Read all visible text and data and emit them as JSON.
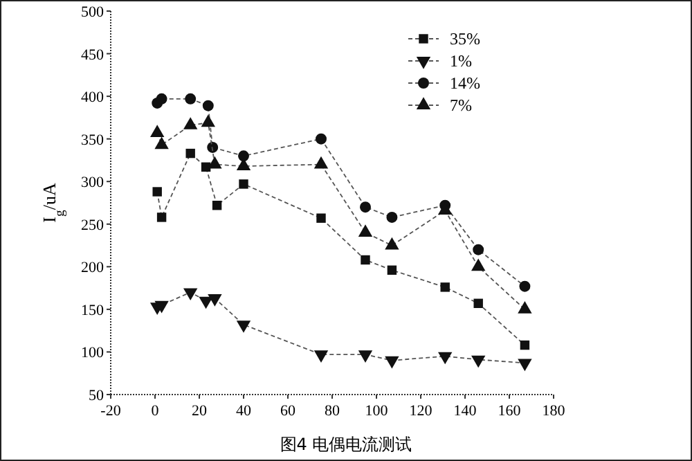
{
  "chart_data": {
    "type": "line",
    "ylabel": "I$_{g}$/uA",
    "annotations": [
      "图4   电偶电流测试"
    ],
    "xlim": [
      -20,
      180
    ],
    "xticks": [
      -20,
      0,
      20,
      40,
      60,
      80,
      100,
      120,
      140,
      160,
      180
    ],
    "ylim": [
      50,
      500
    ],
    "yticks": [
      50,
      100,
      150,
      200,
      250,
      300,
      350,
      400,
      450,
      500
    ],
    "legend": "top right",
    "grid": false,
    "line_style": "dashed",
    "series": [
      {
        "name": "35%",
        "color": "#111111",
        "marker": "square",
        "x": [
          1,
          3,
          16,
          23,
          28,
          40,
          75,
          95,
          107,
          131,
          146,
          167
        ],
        "values": [
          288,
          258,
          333,
          317,
          272,
          297,
          257,
          208,
          196,
          176,
          157,
          108
        ]
      },
      {
        "name": "1%",
        "color": "#111111",
        "marker": "triangle-down",
        "x": [
          1,
          3,
          16,
          23,
          27,
          40,
          75,
          95,
          107,
          131,
          146,
          167
        ],
        "values": [
          153,
          155,
          170,
          160,
          163,
          132,
          97,
          97,
          90,
          95,
          91,
          87
        ]
      },
      {
        "name": "14%",
        "color": "#111111",
        "marker": "circle",
        "x": [
          1,
          3,
          16,
          24,
          26,
          40,
          75,
          95,
          107,
          131,
          146,
          167
        ],
        "values": [
          392,
          397,
          397,
          389,
          340,
          330,
          350,
          270,
          258,
          272,
          220,
          177
        ]
      },
      {
        "name": "7%",
        "color": "#111111",
        "marker": "triangle",
        "x": [
          1,
          3,
          16,
          24,
          27,
          40,
          75,
          95,
          107,
          131,
          146,
          167
        ],
        "values": [
          357,
          343,
          366,
          369,
          320,
          318,
          320,
          240,
          225,
          266,
          200,
          150
        ]
      }
    ]
  }
}
